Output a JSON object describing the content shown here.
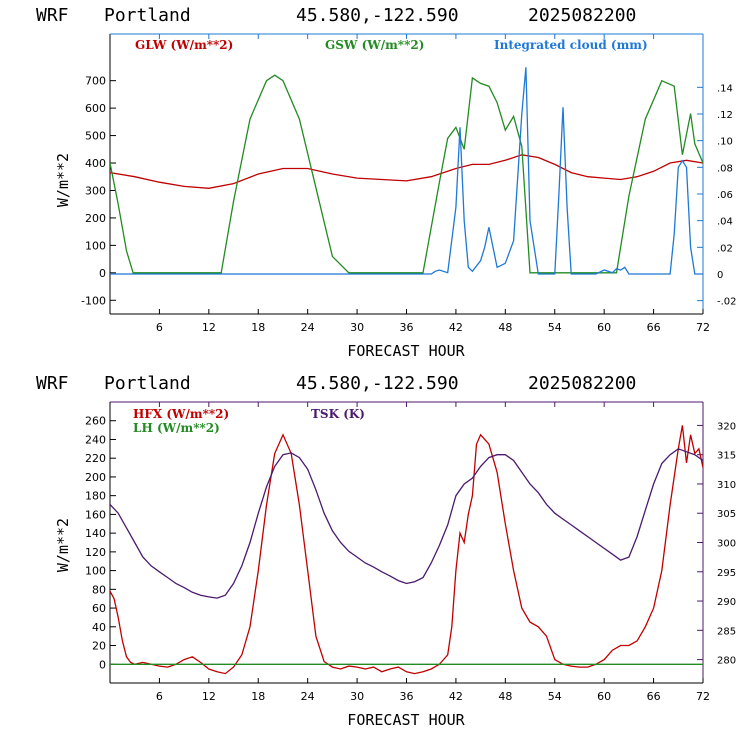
{
  "chart_data": [
    {
      "type": "line",
      "header": {
        "model": "WRF",
        "location": "Portland",
        "coords": "45.580,-122.590",
        "run": "2025082200"
      },
      "xlabel": "FORECAST HOUR",
      "ylabel": "W/m**2",
      "xlim": [
        0,
        72
      ],
      "ylim": [
        -150,
        870
      ],
      "y2lim": [
        -0.03,
        0.18
      ],
      "x_ticks": [
        6,
        12,
        18,
        24,
        30,
        36,
        42,
        48,
        54,
        60,
        66,
        72
      ],
      "y_ticks": [
        -100,
        0,
        100,
        200,
        300,
        400,
        500,
        600,
        700
      ],
      "y2_ticks": [
        -0.02,
        0,
        0.02,
        0.04,
        0.06,
        0.08,
        0.1,
        0.12,
        0.14
      ],
      "y2_tick_labels": [
        "-.02",
        "0",
        ".02",
        ".04",
        ".06",
        ".08",
        ".10",
        ".12",
        ".14"
      ],
      "series": [
        {
          "name": "GLW (W/m**2)",
          "color": "#c00000",
          "axis": "left",
          "x": [
            0,
            3,
            6,
            9,
            12,
            15,
            18,
            21,
            24,
            27,
            30,
            33,
            36,
            39,
            42,
            44,
            46,
            48,
            50,
            52,
            54,
            56,
            58,
            60,
            62,
            64,
            66,
            68,
            70,
            72
          ],
          "y": [
            365,
            350,
            330,
            315,
            308,
            325,
            360,
            380,
            380,
            360,
            345,
            340,
            335,
            350,
            380,
            395,
            395,
            410,
            430,
            420,
            395,
            365,
            350,
            345,
            340,
            350,
            370,
            400,
            410,
            400
          ]
        },
        {
          "name": "GSW (W/m**2)",
          "color": "#228b22",
          "axis": "left",
          "x": [
            0,
            1,
            2,
            2.8,
            13.5,
            15,
            17,
            19,
            20,
            21,
            23,
            25,
            27,
            29,
            38,
            40,
            41,
            42,
            43,
            44,
            45,
            46,
            47,
            48,
            49,
            50,
            51,
            61.5,
            63,
            65,
            67,
            68.5,
            69.5,
            70.5,
            71,
            72
          ],
          "y": [
            400,
            250,
            80,
            0,
            0,
            260,
            560,
            700,
            720,
            700,
            560,
            310,
            60,
            0,
            0,
            330,
            490,
            530,
            450,
            710,
            690,
            680,
            620,
            520,
            570,
            460,
            0,
            0,
            280,
            560,
            700,
            680,
            430,
            580,
            470,
            400
          ]
        },
        {
          "name": "Integrated cloud (mm)",
          "color": "#1e78d7",
          "axis": "right",
          "x": [
            0,
            39,
            39.5,
            40,
            41,
            42,
            42.5,
            43,
            43.5,
            44,
            45,
            45.5,
            46,
            46.5,
            47,
            48,
            49,
            50,
            50.5,
            51,
            52,
            54,
            54.5,
            55,
            55.5,
            56,
            59,
            60,
            61,
            61.5,
            62,
            62.5,
            63,
            68,
            68.5,
            69,
            69.5,
            70,
            70.5,
            71,
            72
          ],
          "y": [
            0,
            0,
            0.002,
            0.003,
            0.001,
            0.05,
            0.11,
            0.04,
            0.005,
            0.002,
            0.01,
            0.02,
            0.035,
            0.02,
            0.005,
            0.008,
            0.025,
            0.12,
            0.155,
            0.04,
            0,
            0,
            0.06,
            0.125,
            0.05,
            0,
            0,
            0.003,
            0.001,
            0.004,
            0.003,
            0.005,
            0,
            0,
            0.03,
            0.08,
            0.085,
            0.08,
            0.02,
            0,
            0
          ]
        }
      ]
    },
    {
      "type": "line",
      "header": {
        "model": "WRF",
        "location": "Portland",
        "coords": "45.580,-122.590",
        "run": "2025082200"
      },
      "xlabel": "FORECAST HOUR",
      "ylabel": "W/m**2",
      "xlim": [
        0,
        72
      ],
      "ylim": [
        -20,
        280
      ],
      "y2lim": [
        276,
        324
      ],
      "x_ticks": [
        6,
        12,
        18,
        24,
        30,
        36,
        42,
        48,
        54,
        60,
        66,
        72
      ],
      "y_ticks": [
        0,
        20,
        40,
        60,
        80,
        100,
        120,
        140,
        160,
        180,
        200,
        220,
        240,
        260
      ],
      "y2_ticks": [
        280,
        285,
        290,
        295,
        300,
        305,
        310,
        315,
        320
      ],
      "y2_tick_labels": [
        "280",
        "285",
        "290",
        "295",
        "300",
        "305",
        "310",
        "315",
        "320"
      ],
      "series": [
        {
          "name": "HFX (W/m**2)",
          "color": "#c00000",
          "axis": "left",
          "x": [
            0,
            0.5,
            1,
            1.5,
            2,
            2.5,
            3,
            4,
            5,
            6,
            7,
            8,
            9,
            10,
            11,
            12,
            13,
            14,
            15,
            16,
            17,
            18,
            19,
            20,
            21,
            22,
            23,
            24,
            25,
            26,
            27,
            28,
            29,
            30,
            31,
            32,
            33,
            34,
            35,
            36,
            37,
            38,
            39,
            40,
            41,
            41.5,
            42,
            42.5,
            43,
            43.5,
            44,
            44.5,
            45,
            46,
            46.5,
            47,
            48,
            49,
            50,
            51,
            52,
            53,
            54,
            55,
            56,
            57,
            58,
            59,
            60,
            61,
            62,
            63,
            64,
            65,
            66,
            67,
            68,
            68.5,
            69,
            69.5,
            70,
            70.5,
            71,
            71.5,
            72
          ],
          "y": [
            78,
            70,
            50,
            25,
            8,
            2,
            0,
            2,
            0,
            -2,
            -3,
            0,
            5,
            8,
            2,
            -5,
            -8,
            -10,
            -3,
            10,
            40,
            100,
            170,
            225,
            245,
            225,
            170,
            100,
            30,
            3,
            -3,
            -5,
            -2,
            -3,
            -5,
            -3,
            -8,
            -5,
            -3,
            -8,
            -10,
            -8,
            -5,
            0,
            10,
            40,
            100,
            140,
            130,
            160,
            180,
            235,
            245,
            235,
            220,
            205,
            150,
            100,
            60,
            45,
            40,
            30,
            5,
            0,
            -2,
            -3,
            -3,
            0,
            5,
            15,
            20,
            20,
            25,
            40,
            60,
            100,
            170,
            200,
            230,
            255,
            215,
            245,
            225,
            230,
            210
          ]
        },
        {
          "name": "LH (W/m**2)",
          "color": "#228b22",
          "axis": "left",
          "x": [
            0,
            72
          ],
          "y": [
            0,
            0
          ]
        },
        {
          "name": "TSK (K)",
          "color": "#4b1a6e",
          "axis": "right",
          "x": [
            0,
            1,
            2,
            3,
            4,
            5,
            6,
            7,
            8,
            9,
            10,
            11,
            12,
            13,
            14,
            15,
            16,
            17,
            18,
            19,
            20,
            21,
            22,
            23,
            24,
            25,
            26,
            27,
            28,
            29,
            30,
            31,
            32,
            33,
            34,
            35,
            36,
            37,
            38,
            39,
            40,
            41,
            42,
            43,
            44,
            45,
            46,
            47,
            48,
            49,
            50,
            51,
            52,
            53,
            54,
            55,
            56,
            57,
            58,
            59,
            60,
            61,
            62,
            63,
            64,
            65,
            66,
            67,
            68,
            69,
            70,
            71,
            72
          ],
          "y": [
            306.5,
            305,
            302.5,
            300,
            297.5,
            296,
            295,
            294,
            293,
            292.3,
            291.5,
            291,
            290.7,
            290.5,
            291,
            293,
            296,
            300,
            305,
            309.5,
            313,
            315,
            315.3,
            314.5,
            312.5,
            309,
            305,
            302,
            300,
            298.5,
            297.5,
            296.5,
            295.8,
            295,
            294.3,
            293.5,
            293,
            293.3,
            294,
            296.5,
            299.5,
            303,
            308,
            310,
            311,
            313,
            314.5,
            315,
            315,
            314,
            312,
            310,
            308.5,
            306.5,
            305,
            304,
            303,
            302,
            301,
            300,
            299,
            298,
            297,
            297.5,
            301,
            305.5,
            310,
            313.5,
            315,
            316,
            315.5,
            315,
            314
          ]
        }
      ]
    }
  ]
}
